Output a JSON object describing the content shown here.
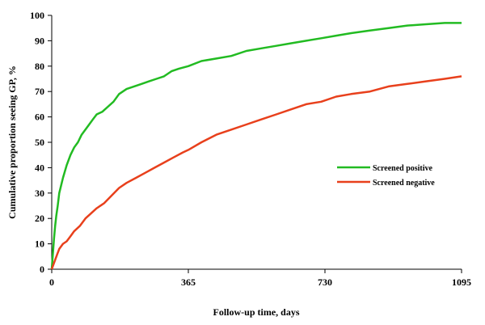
{
  "chart_data": {
    "type": "line",
    "title": "",
    "xlabel": "Follow-up time, days",
    "ylabel": "Cumulative proportion seeing GP, %",
    "xlim": [
      0,
      1095
    ],
    "ylim": [
      0,
      100
    ],
    "xticks": [
      0,
      365,
      730,
      1095
    ],
    "yticks": [
      0,
      10,
      20,
      30,
      40,
      50,
      60,
      70,
      80,
      90,
      100
    ],
    "grid": false,
    "legend_position": "right-middle",
    "series": [
      {
        "name": "Screened positive",
        "color": "#22bb22",
        "x": [
          0,
          3,
          6,
          9,
          12,
          16,
          20,
          25,
          30,
          40,
          50,
          60,
          70,
          80,
          90,
          100,
          110,
          120,
          135,
          150,
          165,
          180,
          200,
          220,
          240,
          260,
          280,
          300,
          320,
          340,
          365,
          400,
          440,
          480,
          520,
          560,
          600,
          640,
          680,
          720,
          760,
          800,
          850,
          900,
          950,
          1000,
          1050,
          1095
        ],
        "y": [
          0,
          6,
          12,
          17,
          21,
          25,
          30,
          33,
          36,
          41,
          45,
          48,
          50,
          53,
          55,
          57,
          59,
          61,
          62,
          64,
          66,
          69,
          71,
          72,
          73,
          74,
          75,
          76,
          78,
          79,
          80,
          82,
          83,
          84,
          86,
          87,
          88,
          89,
          90,
          91,
          92,
          93,
          94,
          95,
          96,
          96.5,
          97,
          97
        ]
      },
      {
        "name": "Screened negative",
        "color": "#e8401c",
        "x": [
          0,
          5,
          10,
          15,
          20,
          30,
          40,
          50,
          60,
          75,
          90,
          105,
          120,
          140,
          160,
          180,
          200,
          225,
          250,
          275,
          300,
          325,
          350,
          365,
          400,
          440,
          480,
          520,
          560,
          600,
          640,
          680,
          720,
          760,
          800,
          850,
          900,
          950,
          1000,
          1050,
          1095
        ],
        "y": [
          0,
          2,
          4,
          6,
          8,
          10,
          11,
          13,
          15,
          17,
          20,
          22,
          24,
          26,
          29,
          32,
          34,
          36,
          38,
          40,
          42,
          44,
          46,
          47,
          50,
          53,
          55,
          57,
          59,
          61,
          63,
          65,
          66,
          68,
          69,
          70,
          72,
          73,
          74,
          75,
          76
        ]
      }
    ]
  }
}
